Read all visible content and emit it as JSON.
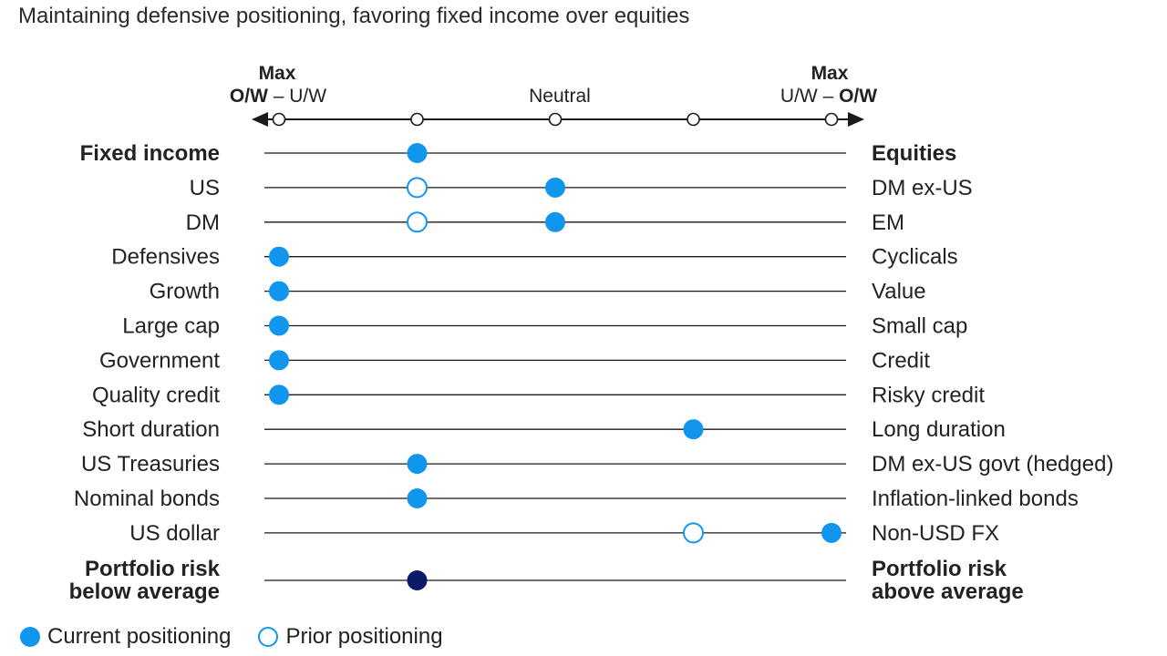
{
  "title": "Maintaining defensive positioning, favoring fixed income over equities",
  "scale": {
    "left_max": "Max",
    "left_label_bold": "O/W",
    "left_label_sep": " – ",
    "left_label_rest": "U/W",
    "neutral": "Neutral",
    "right_max": "Max",
    "right_label_rest": "U/W",
    "right_label_sep": " – ",
    "right_label_bold": "O/W",
    "levels": [
      -2,
      -1,
      0,
      1,
      2
    ]
  },
  "legend": {
    "current": "Current positioning",
    "prior": "Prior positioning"
  },
  "colors": {
    "current": "#1196ee",
    "prior_stroke": "#1196ee",
    "portfolio_risk": "#0b1a66",
    "line": "#1a1a1a"
  },
  "chart_data": {
    "type": "scatter",
    "x_range": [
      -2,
      2
    ],
    "x_ticks": [
      -2,
      -1,
      0,
      1,
      2
    ],
    "rows": [
      {
        "left": "Fixed income",
        "right": "Equities",
        "bold": true,
        "current": -1,
        "prior": null
      },
      {
        "left": "US",
        "right": "DM ex-US",
        "bold": false,
        "current": 0,
        "prior": -1
      },
      {
        "left": "DM",
        "right": "EM",
        "bold": false,
        "current": 0,
        "prior": -1
      },
      {
        "left": "Defensives",
        "right": "Cyclicals",
        "bold": false,
        "current": -2,
        "prior": null
      },
      {
        "left": "Growth",
        "right": "Value",
        "bold": false,
        "current": -2,
        "prior": null
      },
      {
        "left": "Large cap",
        "right": "Small cap",
        "bold": false,
        "current": -2,
        "prior": null
      },
      {
        "left": "Government",
        "right": "Credit",
        "bold": false,
        "current": -2,
        "prior": null
      },
      {
        "left": "Quality credit",
        "right": "Risky credit",
        "bold": false,
        "current": -2,
        "prior": null
      },
      {
        "left": "Short duration",
        "right": "Long duration",
        "bold": false,
        "current": 1,
        "prior": null
      },
      {
        "left": "US Treasuries",
        "right": "DM ex-US govt (hedged)",
        "bold": false,
        "current": -1,
        "prior": null
      },
      {
        "left": "Nominal bonds",
        "right": "Inflation-linked bonds",
        "bold": false,
        "current": -1,
        "prior": null
      },
      {
        "left": "US dollar",
        "right": "Non-USD FX",
        "bold": false,
        "current": 2,
        "prior": 1
      },
      {
        "left": [
          "Portfolio risk",
          "below average"
        ],
        "right": [
          "Portfolio risk",
          "above average"
        ],
        "bold": true,
        "current": -1,
        "prior": null,
        "dark": true
      }
    ]
  }
}
